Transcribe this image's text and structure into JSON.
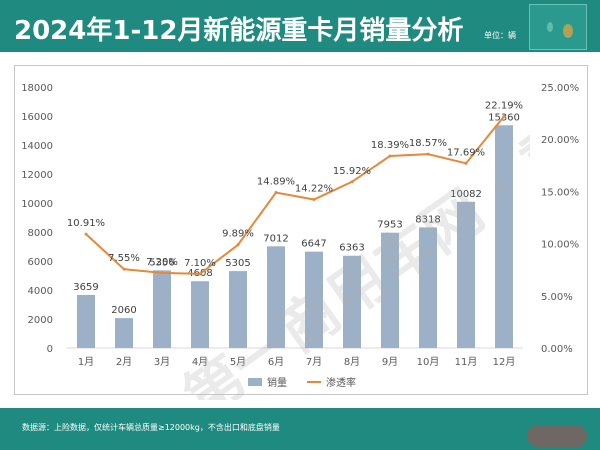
{
  "header": {
    "title": "2024年1-12月新能源重卡月销量分析",
    "unit": "单位：辆"
  },
  "footer": {
    "note": "数据源：上险数据，仅统计车辆总质量≥12000kg，不含出口和底盘销量"
  },
  "watermark": "第一商用车网 · 重卡",
  "colors": {
    "header_bg": "#1e8a80",
    "bar": "#9cb1c8",
    "line": "#e5883a",
    "axis_text": "#595959"
  },
  "chart_data": {
    "type": "bar",
    "categories": [
      "1月",
      "2月",
      "3月",
      "4月",
      "5月",
      "6月",
      "7月",
      "8月",
      "9月",
      "10月",
      "11月",
      "12月"
    ],
    "series": [
      {
        "name": "销量",
        "type": "bar",
        "axis": "left",
        "values": [
          3659,
          2060,
          5356,
          4608,
          5305,
          7012,
          6647,
          6363,
          7953,
          8318,
          10082,
          15360
        ],
        "labels": [
          "3659",
          "2060",
          "5356",
          "4608",
          "5305",
          "7012",
          "6647",
          "6363",
          "7953",
          "8318",
          "10082",
          "15360"
        ]
      },
      {
        "name": "渗透率",
        "type": "line",
        "axis": "right",
        "values": [
          10.91,
          7.55,
          7.2,
          7.1,
          9.89,
          14.89,
          14.22,
          15.92,
          18.39,
          18.57,
          17.69,
          22.19
        ],
        "labels": [
          "10.91%",
          "7.55%",
          "7.20%",
          "7.10%",
          "9.89%",
          "14.89%",
          "14.22%",
          "15.92%",
          "18.39%",
          "18.57%",
          "17.69%",
          "22.19%"
        ]
      }
    ],
    "y_left": {
      "min": 0,
      "max": 18000,
      "ticks": [
        "0",
        "2000",
        "4000",
        "6000",
        "8000",
        "10000",
        "12000",
        "14000",
        "16000",
        "18000"
      ]
    },
    "y_right": {
      "min": 0,
      "max": 25,
      "ticks": [
        "0.00%",
        "5.00%",
        "10.00%",
        "15.00%",
        "20.00%",
        "25.00%"
      ]
    },
    "grid": false,
    "legend_position": "bottom"
  }
}
